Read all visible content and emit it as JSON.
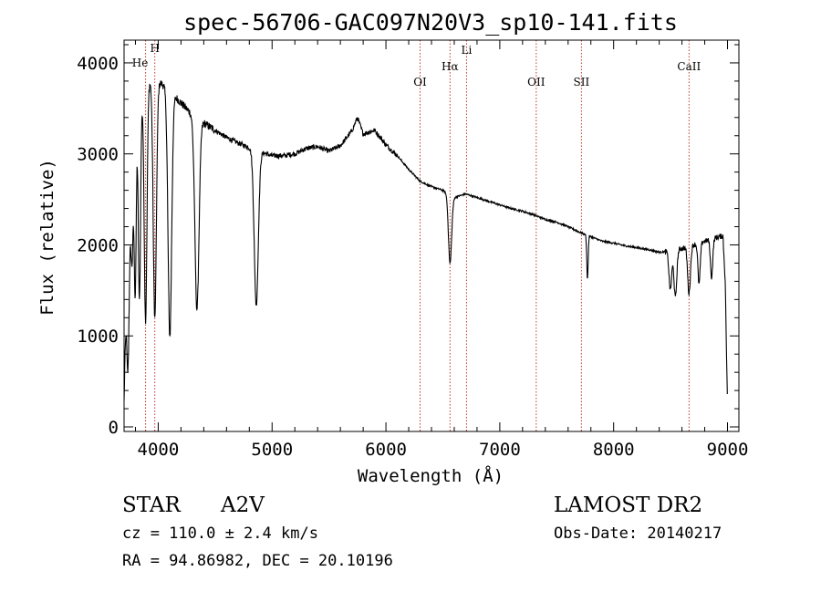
{
  "chart_data": {
    "type": "line",
    "title": "spec-56706-GAC097N20V3_sp10-141.fits",
    "xlabel": "Wavelength (Å)",
    "ylabel": "Flux (relative)",
    "xlim": [
      3700,
      9100
    ],
    "ylim": [
      -50,
      4250
    ],
    "x_ticks": [
      4000,
      5000,
      6000,
      7000,
      8000,
      9000
    ],
    "y_ticks": [
      0,
      1000,
      2000,
      3000,
      4000
    ],
    "grid": false,
    "continuum_points": [
      [
        3700,
        300
      ],
      [
        3720,
        1700
      ],
      [
        3750,
        2600
      ],
      [
        3800,
        3400
      ],
      [
        3850,
        3650
      ],
      [
        3900,
        3750
      ],
      [
        3950,
        3850
      ],
      [
        4000,
        3800
      ],
      [
        4100,
        3700
      ],
      [
        4200,
        3560
      ],
      [
        4300,
        3430
      ],
      [
        4400,
        3340
      ],
      [
        4500,
        3260
      ],
      [
        4600,
        3180
      ],
      [
        4700,
        3120
      ],
      [
        4800,
        3070
      ],
      [
        4900,
        3020
      ],
      [
        5000,
        2980
      ],
      [
        5100,
        2980
      ],
      [
        5200,
        3000
      ],
      [
        5300,
        3060
      ],
      [
        5400,
        3080
      ],
      [
        5500,
        3030
      ],
      [
        5600,
        3090
      ],
      [
        5700,
        3250
      ],
      [
        5750,
        3400
      ],
      [
        5800,
        3220
      ],
      [
        5900,
        3260
      ],
      [
        6000,
        3100
      ],
      [
        6100,
        2980
      ],
      [
        6200,
        2830
      ],
      [
        6300,
        2700
      ],
      [
        6400,
        2640
      ],
      [
        6500,
        2600
      ],
      [
        6600,
        2520
      ],
      [
        6700,
        2560
      ],
      [
        6800,
        2520
      ],
      [
        6900,
        2480
      ],
      [
        7000,
        2440
      ],
      [
        7100,
        2400
      ],
      [
        7200,
        2370
      ],
      [
        7300,
        2330
      ],
      [
        7400,
        2280
      ],
      [
        7500,
        2250
      ],
      [
        7600,
        2200
      ],
      [
        7700,
        2140
      ],
      [
        7800,
        2090
      ],
      [
        7900,
        2040
      ],
      [
        8000,
        2020
      ],
      [
        8100,
        1990
      ],
      [
        8200,
        1970
      ],
      [
        8300,
        1950
      ],
      [
        8400,
        1920
      ],
      [
        8500,
        1930
      ],
      [
        8600,
        1960
      ],
      [
        8700,
        2000
      ],
      [
        8800,
        2040
      ],
      [
        8900,
        2080
      ],
      [
        8960,
        2100
      ],
      [
        8980,
        1600
      ],
      [
        9000,
        200
      ]
    ],
    "absorption_features": [
      [
        3735,
        1500,
        12
      ],
      [
        3770,
        1100,
        10
      ],
      [
        3798,
        1900,
        9
      ],
      [
        3835,
        2200,
        10
      ],
      [
        3889,
        2550,
        12
      ],
      [
        3970,
        2650,
        14
      ],
      [
        4102,
        2700,
        16
      ],
      [
        4340,
        2100,
        18
      ],
      [
        4861,
        1700,
        18
      ],
      [
        6563,
        750,
        14
      ],
      [
        7770,
        480,
        6
      ],
      [
        8498,
        420,
        12
      ],
      [
        8542,
        520,
        12
      ],
      [
        8662,
        520,
        12
      ],
      [
        8750,
        450,
        10
      ],
      [
        8860,
        420,
        10
      ]
    ],
    "reference_lines": [
      {
        "name": "He",
        "wavelength": 3889
      },
      {
        "name": "H",
        "wavelength": 3970
      },
      {
        "name": "OI",
        "wavelength": 6300
      },
      {
        "name": "Hα",
        "wavelength": 6563
      },
      {
        "name": "Li",
        "wavelength": 6708
      },
      {
        "name": "OII",
        "wavelength": 7320
      },
      {
        "name": "SII",
        "wavelength": 7717
      },
      {
        "name": "CaII",
        "wavelength": 8662
      }
    ],
    "line_color": "#000000",
    "reference_line_color": "#c0392b"
  },
  "info": {
    "object_class": "STAR",
    "subclass": "A2V",
    "survey": "LAMOST DR2",
    "cz": "cz = 110.0 ± 2.4 km/s",
    "obs_date": "Obs-Date: 20140217",
    "coords": "RA =  94.86982, DEC =  20.10196"
  }
}
